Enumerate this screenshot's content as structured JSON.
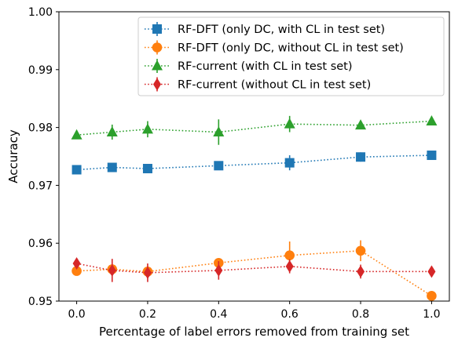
{
  "chart_data": {
    "type": "line",
    "xlabel": "Percentage of label errors removed from training set",
    "ylabel": "Accuracy",
    "xlim": [
      -0.05,
      1.05
    ],
    "ylim": [
      0.95,
      1.0
    ],
    "xticks": [
      0.0,
      0.2,
      0.4,
      0.6,
      0.8,
      1.0
    ],
    "xtick_labels": [
      "0.0",
      "0.2",
      "0.4",
      "0.6",
      "0.8",
      "1.0"
    ],
    "yticks": [
      0.95,
      0.96,
      0.97,
      0.98,
      0.99,
      1.0
    ],
    "ytick_labels": [
      "0.95",
      "0.96",
      "0.97",
      "0.98",
      "0.99",
      "1.00"
    ],
    "grid": false,
    "legend_position": "top-right",
    "x": [
      0.0,
      0.1,
      0.2,
      0.4,
      0.6,
      0.8,
      1.0
    ],
    "series": [
      {
        "name": "RF-DFT (only DC, with CL in test set)",
        "color": "#1f77b4",
        "marker": "square",
        "values": [
          0.9727,
          0.9731,
          0.9729,
          0.9734,
          0.9739,
          0.9749,
          0.9752
        ],
        "errors": [
          0.0004,
          0.0006,
          0.0007,
          0.0007,
          0.0013,
          0.0008,
          0.0003
        ]
      },
      {
        "name": "RF-DFT (only DC, without CL in test set)",
        "color": "#ff7f0e",
        "marker": "circle",
        "values": [
          0.9552,
          0.9555,
          0.9551,
          0.9566,
          0.9579,
          0.9587,
          0.9509
        ],
        "errors": [
          0.0004,
          0.0009,
          0.0009,
          0.0007,
          0.0024,
          0.0018,
          0.0002
        ]
      },
      {
        "name": "RF-current (with CL in test set)",
        "color": "#2ca02c",
        "marker": "triangle",
        "values": [
          0.9787,
          0.9792,
          0.9797,
          0.9792,
          0.9806,
          0.9804,
          0.9811
        ],
        "errors": [
          0.0003,
          0.0013,
          0.0014,
          0.0022,
          0.0014,
          0.0007,
          0.0003
        ]
      },
      {
        "name": "RF-current (without CL in test set)",
        "color": "#d62728",
        "marker": "diamond",
        "values": [
          0.9565,
          0.9553,
          0.9549,
          0.9553,
          0.956,
          0.9551,
          0.9551
        ],
        "errors": [
          0.0007,
          0.002,
          0.0016,
          0.0016,
          0.0012,
          0.0012,
          0.0004
        ]
      }
    ]
  }
}
